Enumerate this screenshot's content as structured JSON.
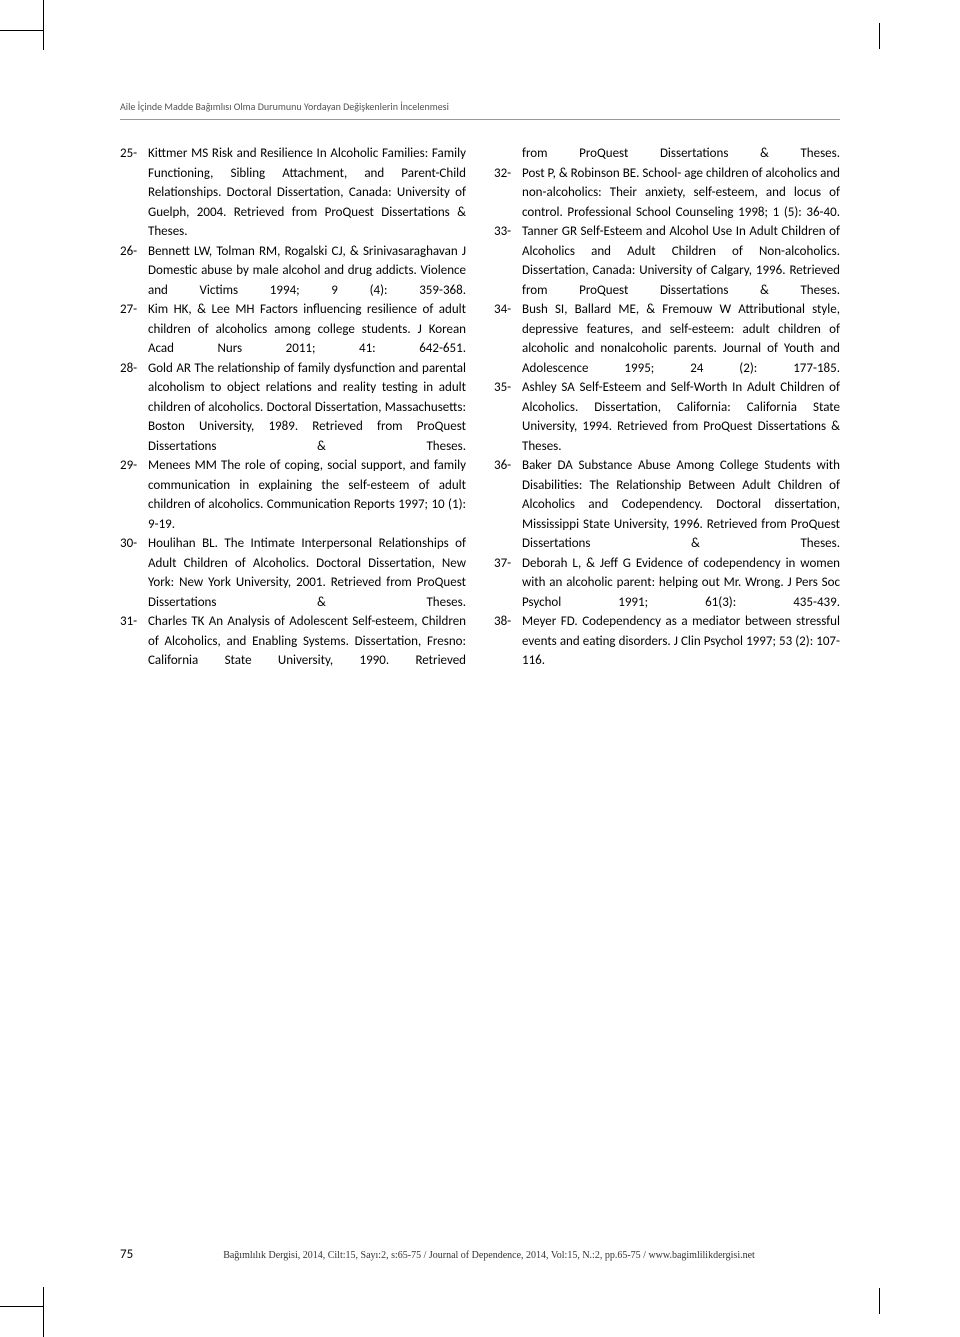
{
  "header": "Aile İçinde Madde Bağımlısı Olma Durumunu Yordayan Değişkenlerin İncelenmesi",
  "references_left": [
    {
      "num": "25-",
      "text": "Kittmer MS Risk and Resilience In Alcoholic Families: Family Functioning, Sibling Attachment, and Parent-Child Relationships. Doctoral Dissertation, Canada: University of Guelph, 2004. Retrieved from ProQuest Dissertations & Theses."
    },
    {
      "num": "26-",
      "text": "Bennett LW, Tolman RM, Rogalski CJ, & Srinivasaraghavan J Domestic abuse by male alcohol and drug addicts. Violence and Victims 1994; 9 (4): 359-368."
    },
    {
      "num": "27-",
      "text": "Kim HK, & Lee MH Factors influencing resilience of adult children of alcoholics among college students. J Korean Acad Nurs 2011; 41: 642-651."
    },
    {
      "num": "28-",
      "text": "Gold AR The relationship of family dysfunction and parental alcoholism to object relations and reality testing in adult children of alcoholics. Doctoral Dissertation, Massachusetts: Boston University, 1989. Retrieved from ProQuest Dissertations & Theses."
    },
    {
      "num": "29-",
      "text": "Menees MM The role of coping, social support, and family communication in explaining the self-esteem of adult children of alcoholics. Communication Reports 1997; 10 (1): 9-19."
    },
    {
      "num": "30-",
      "text": "Houlihan BL. The Intimate Interpersonal Relationships of Adult Children of Alcoholics. Doctoral Dissertation, New York: New York University, 2001. Retrieved from ProQuest Dissertations & Theses."
    },
    {
      "num": "31-",
      "text": "Charles TK An Analysis of Adolescent Self-esteem, Children of Alcoholics, and Enabling Systems. Dissertation, Fresno: California State University, 1990. Retrieved"
    }
  ],
  "references_right": [
    {
      "num": "",
      "text": "from ProQuest Dissertations & Theses."
    },
    {
      "num": "32-",
      "text": "Post P, & Robinson BE. School- age children of alcoholics and non-alcoholics: Their anxiety, self-esteem, and locus of control. Professional School Counseling 1998; 1 (5): 36-40."
    },
    {
      "num": "33-",
      "text": "Tanner GR Self-Esteem and Alcohol Use In Adult Children of Alcoholics and Adult Children of Non-alcoholics. Dissertation, Canada: University of Calgary, 1996. Retrieved from ProQuest Dissertations & Theses."
    },
    {
      "num": "34-",
      "text": "Bush SI, Ballard ME, & Fremouw W Attributional style, depressive features, and self-esteem: adult children of alcoholic and nonalcoholic parents. Journal of Youth and Adolescence 1995; 24 (2): 177-185."
    },
    {
      "num": "35-",
      "text": "Ashley SA Self-Esteem and Self-Worth In Adult Children of Alcoholics. Dissertation, California: California State University, 1994. Retrieved from ProQuest Dissertations & Theses."
    },
    {
      "num": "36-",
      "text": "Baker DA Substance Abuse Among College Students with Disabilities: The Relationship Between Adult Children of Alcoholics and Codependency. Doctoral dissertation, Mississippi State University, 1996. Retrieved from ProQuest Dissertations & Theses."
    },
    {
      "num": "37-",
      "text": "Deborah L, & Jeff G Evidence of codependency in women with an alcoholic parent: helping out Mr. Wrong. J Pers Soc Psychol 1991; 61(3): 435-439."
    },
    {
      "num": "38-",
      "text": "Meyer FD. Codependency as a mediator between stressful events and eating disorders. J Clin Psychol 1997; 53 (2): 107-116."
    }
  ],
  "page_number": "75",
  "footer": "Bağımlılık Dergisi, 2014, Cilt:15, Sayı:2, s:65-75 / Journal of Dependence, 2014, Vol:15, N.:2, pp.65-75 / www.bagimlilikdergisi.net"
}
